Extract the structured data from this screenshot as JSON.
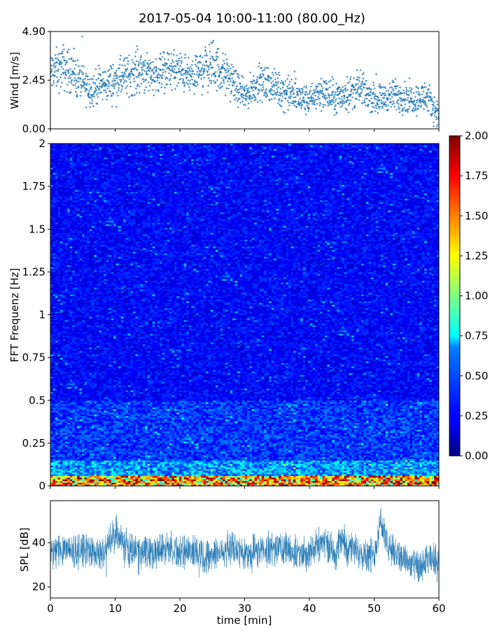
{
  "figure": {
    "title": "2017-05-04 10:00-11:00 (80.00_Hz)"
  },
  "colors": {
    "wind_marker": "#1f77b4",
    "spl_line": "#1f77b4",
    "colormap": "jet"
  },
  "chart_data": [
    {
      "id": "wind",
      "type": "scatter",
      "ylabel": "Wind [m/s]",
      "xlim": [
        0,
        60
      ],
      "ylim": [
        0,
        4.9
      ],
      "yticks": [
        "0.00",
        "2.45",
        "4.90"
      ],
      "marker": "+",
      "series": [
        {
          "x_minutes": [
            0,
            2,
            4,
            6,
            8,
            10,
            12,
            14,
            16,
            18,
            20,
            22,
            24,
            26,
            28,
            30,
            32,
            34,
            36,
            38,
            40,
            42,
            44,
            46,
            48,
            50,
            52,
            54,
            56,
            58,
            60
          ],
          "mean": [
            2.8,
            3.1,
            2.6,
            2.0,
            2.2,
            2.4,
            2.7,
            3.0,
            2.7,
            3.0,
            2.9,
            2.5,
            3.2,
            3.0,
            2.4,
            1.6,
            2.3,
            2.2,
            1.9,
            1.6,
            1.4,
            1.9,
            1.5,
            1.8,
            2.0,
            1.5,
            1.6,
            1.7,
            1.5,
            1.6,
            0.7
          ],
          "spread": [
            0.7,
            0.8,
            0.7,
            0.6,
            0.6,
            0.7,
            0.7,
            0.8,
            0.6,
            0.7,
            0.7,
            0.6,
            0.9,
            0.8,
            0.6,
            0.5,
            0.6,
            0.6,
            0.6,
            0.6,
            0.5,
            0.6,
            0.6,
            0.6,
            0.6,
            0.5,
            0.5,
            0.6,
            0.5,
            0.6,
            0.4
          ],
          "samples": 1800
        }
      ]
    },
    {
      "id": "spectrogram",
      "type": "heatmap",
      "ylabel": "FFT Frequenz [Hz]",
      "xlim": [
        0,
        60
      ],
      "ylim": [
        0,
        2
      ],
      "yticks": [
        "0",
        "0.25",
        "0.5",
        "0.75",
        "1",
        "1.25",
        "1.5",
        "1.75",
        "2"
      ],
      "colorbar": {
        "range": [
          0,
          2
        ],
        "ticks": [
          "0.00",
          "0.25",
          "0.50",
          "0.75",
          "1.00",
          "1.25",
          "1.50",
          "1.75",
          "2.00"
        ]
      },
      "bands": [
        {
          "from_hz": 0.0,
          "to_hz": 0.06,
          "mean_value": 1.35
        },
        {
          "from_hz": 0.06,
          "to_hz": 0.15,
          "mean_value": 0.55
        },
        {
          "from_hz": 0.15,
          "to_hz": 0.5,
          "mean_value": 0.35
        },
        {
          "from_hz": 0.5,
          "to_hz": 2.0,
          "mean_value": 0.25
        }
      ]
    },
    {
      "id": "spl",
      "type": "line",
      "ylabel": "SPL [dB]",
      "xlabel": "time [min]",
      "xlim": [
        0,
        60
      ],
      "ylim": [
        15,
        59
      ],
      "yticks": [
        "20",
        "40"
      ],
      "xticks": [
        "0",
        "10",
        "20",
        "30",
        "40",
        "50",
        "60"
      ],
      "series": [
        {
          "x_minutes": [
            0,
            2,
            4,
            6,
            8,
            10,
            11,
            12,
            14,
            16,
            18,
            20,
            22,
            24,
            26,
            28,
            30,
            32,
            34,
            36,
            38,
            40,
            42,
            44,
            45,
            46,
            48,
            50,
            51,
            52,
            54,
            56,
            57,
            58,
            60
          ],
          "values": [
            35,
            38,
            36,
            37,
            34,
            45,
            42,
            37,
            36,
            35,
            39,
            35,
            37,
            34,
            36,
            38,
            35,
            36,
            37,
            38,
            35,
            36,
            41,
            35,
            42,
            37,
            36,
            34,
            51,
            38,
            34,
            30,
            28,
            31,
            33
          ]
        }
      ]
    }
  ]
}
